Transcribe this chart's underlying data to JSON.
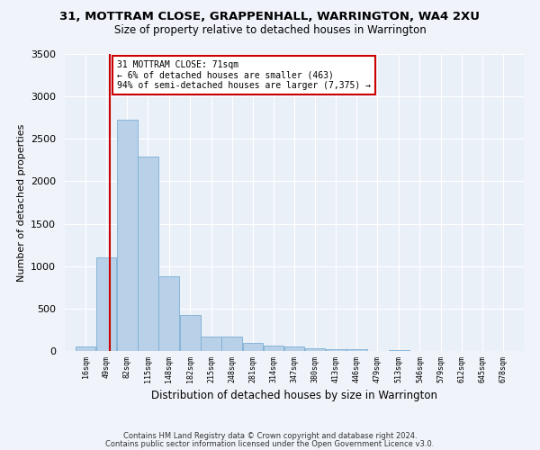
{
  "title": "31, MOTTRAM CLOSE, GRAPPENHALL, WARRINGTON, WA4 2XU",
  "subtitle": "Size of property relative to detached houses in Warrington",
  "xlabel": "Distribution of detached houses by size in Warrington",
  "ylabel": "Number of detached properties",
  "bar_color": "#b8d0e8",
  "bar_edgecolor": "#7aafd4",
  "bg_color": "#eaf0f8",
  "grid_color": "#ffffff",
  "annotation_text": "31 MOTTRAM CLOSE: 71sqm\n← 6% of detached houses are smaller (463)\n94% of semi-detached houses are larger (7,375) →",
  "annotation_box_color": "#ffffff",
  "annotation_box_edgecolor": "#cc0000",
  "vline_color": "#cc0000",
  "categories": [
    "16sqm",
    "49sqm",
    "82sqm",
    "115sqm",
    "148sqm",
    "182sqm",
    "215sqm",
    "248sqm",
    "281sqm",
    "314sqm",
    "347sqm",
    "380sqm",
    "413sqm",
    "446sqm",
    "479sqm",
    "513sqm",
    "546sqm",
    "579sqm",
    "612sqm",
    "645sqm",
    "678sqm"
  ],
  "bin_edges": [
    16,
    49,
    82,
    115,
    148,
    182,
    215,
    248,
    281,
    314,
    347,
    380,
    413,
    446,
    479,
    513,
    546,
    579,
    612,
    645,
    678
  ],
  "values": [
    55,
    1100,
    2730,
    2290,
    880,
    420,
    175,
    165,
    95,
    60,
    55,
    35,
    25,
    20,
    0,
    10,
    0,
    0,
    0,
    0,
    0
  ],
  "ylim": [
    0,
    3500
  ],
  "yticks": [
    0,
    500,
    1000,
    1500,
    2000,
    2500,
    3000,
    3500
  ],
  "footer_line1": "Contains HM Land Registry data © Crown copyright and database right 2024.",
  "footer_line2": "Contains public sector information licensed under the Open Government Licence v3.0."
}
